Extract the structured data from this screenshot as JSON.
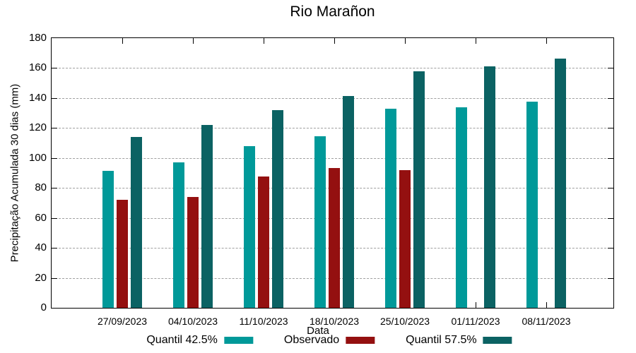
{
  "chart_data": {
    "type": "bar",
    "title": "Rio Marañon",
    "xlabel": "Data",
    "ylabel": "Precipitação Acumulada 30 dias (mm)",
    "ylim": [
      0,
      180
    ],
    "ytick_step": 20,
    "grid": "horizontal-dashed",
    "gridline_color": "#a0a0a0",
    "border_color": "#000000",
    "legend_position": "bottom-center",
    "categories": [
      "27/09/2023",
      "04/10/2023",
      "11/10/2023",
      "18/10/2023",
      "25/10/2023",
      "01/11/2023",
      "08/11/2023"
    ],
    "series": [
      {
        "name": "Quantil 42.5%",
        "color": "#009999",
        "values": [
          91.5,
          97,
          108,
          114.5,
          133,
          134,
          137.5
        ]
      },
      {
        "name": "Observado",
        "color": "#941010",
        "values": [
          72,
          74,
          87.5,
          93.5,
          92,
          null,
          null
        ]
      },
      {
        "name": "Quantil 57.5%",
        "color": "#0B6263",
        "values": [
          114,
          122,
          132,
          141.5,
          158,
          161,
          166.5
        ]
      }
    ]
  }
}
